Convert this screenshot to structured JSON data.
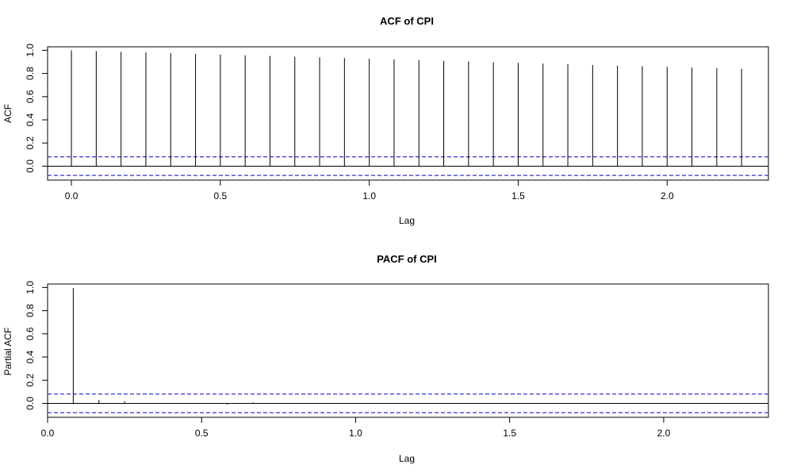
{
  "chart_data": [
    {
      "type": "bar",
      "title": "ACF of CPI",
      "xlabel": "Lag",
      "ylabel": "ACF",
      "xlim": [
        -0.08,
        2.34
      ],
      "ylim": [
        -0.12,
        1.03
      ],
      "x_ticks": [
        0.0,
        0.5,
        1.0,
        1.5,
        2.0
      ],
      "x_tick_labels": [
        "0.0",
        "0.5",
        "1.0",
        "1.5",
        "2.0"
      ],
      "y_ticks": [
        0.0,
        0.2,
        0.4,
        0.6,
        0.8,
        1.0
      ],
      "y_tick_labels": [
        "0.0",
        "0.2",
        "0.4",
        "0.6",
        "0.8",
        "1.0"
      ],
      "confidence_bound": 0.08,
      "confidence_color": "#0000cc",
      "bar_color": "#000000",
      "lag_step": 0.08333,
      "values": [
        1.0,
        0.993,
        0.986,
        0.981,
        0.975,
        0.969,
        0.963,
        0.957,
        0.951,
        0.945,
        0.939,
        0.933,
        0.927,
        0.921,
        0.915,
        0.909,
        0.903,
        0.897,
        0.891,
        0.885,
        0.879,
        0.873,
        0.867,
        0.862,
        0.857,
        0.851,
        0.845,
        0.84
      ]
    },
    {
      "type": "bar",
      "title": "PACF of CPI",
      "xlabel": "Lag",
      "ylabel": "Partial ACF",
      "xlim": [
        0.0,
        2.34
      ],
      "ylim": [
        -0.12,
        1.03
      ],
      "x_ticks": [
        0.0,
        0.5,
        1.0,
        1.5,
        2.0
      ],
      "x_tick_labels": [
        "0.0",
        "0.5",
        "1.0",
        "1.5",
        "2.0"
      ],
      "y_ticks": [
        0.0,
        0.2,
        0.4,
        0.6,
        0.8,
        1.0
      ],
      "y_tick_labels": [
        "0.0",
        "0.2",
        "0.4",
        "0.6",
        "0.8",
        "1.0"
      ],
      "confidence_bound": 0.08,
      "confidence_color": "#0000cc",
      "bar_color": "#000000",
      "lag_step": 0.08333,
      "values": [
        0.995,
        0.03,
        0.018,
        0.0,
        0.0,
        0.0,
        -0.01,
        0.008,
        0.0,
        0.0,
        0.0,
        0.0,
        0.0,
        0.0,
        0.0,
        0.0,
        0.0,
        0.0,
        0.0,
        0.0,
        0.0,
        0.0,
        0.0,
        0.0,
        0.0,
        0.0,
        0.0,
        0.0
      ]
    }
  ]
}
